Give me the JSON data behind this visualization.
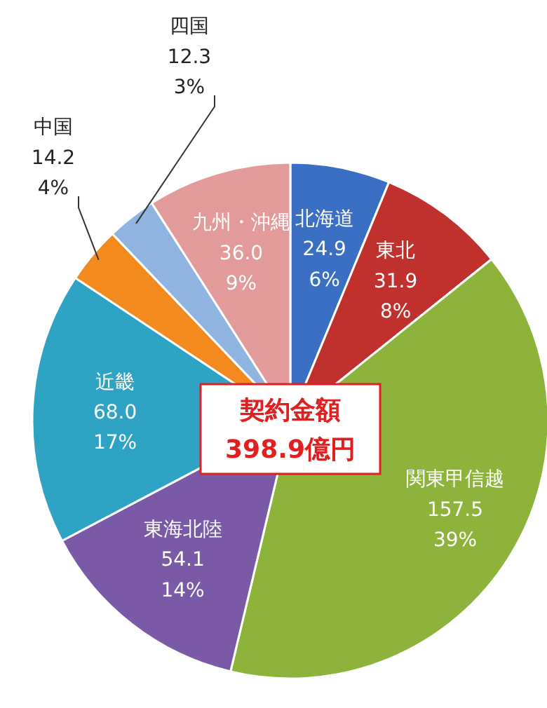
{
  "chart_data": {
    "type": "pie",
    "categories": [
      "北海道",
      "東北",
      "関東甲信越",
      "東海北陸",
      "近畿",
      "中国",
      "四国",
      "九州・沖縄"
    ],
    "values": [
      24.9,
      31.9,
      157.5,
      54.1,
      68.0,
      14.2,
      12.3,
      36.0
    ],
    "value_labels": [
      "24.9 6%",
      "31.9 8%",
      "157.5 39%",
      "54.1 14%",
      "68.0 17%",
      "14.2 4%",
      "12.3 3%",
      "36.0 9%"
    ],
    "colors": [
      "#3a6fc4",
      "#c0312e",
      "#8db33a",
      "#7a5aa6",
      "#2ea3c4",
      "#f28a1e",
      "#8fb4e0",
      "#e39a9a"
    ],
    "annotations": [
      "契約金額",
      "398.9億円"
    ],
    "legend": false
  }
}
